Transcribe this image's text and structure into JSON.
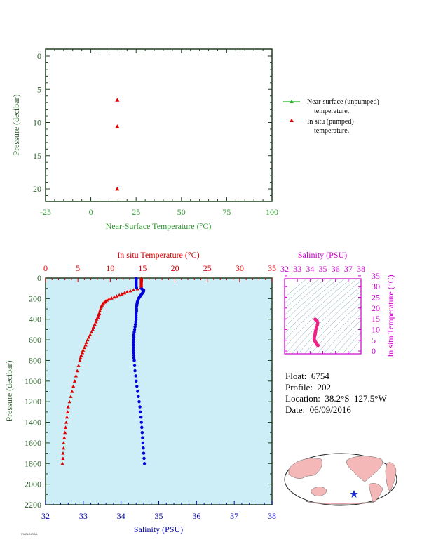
{
  "chart_data": [
    {
      "type": "scatter",
      "xlabel": "Near-Surface Temperature (°C)",
      "ylabel": "Pressure (decibar)",
      "xlim": [
        -25,
        100
      ],
      "ylim": [
        0,
        22
      ],
      "y_inverted": true,
      "xticks": [
        -25,
        0,
        25,
        50,
        75,
        100
      ],
      "yticks": [
        0,
        5,
        10,
        15,
        20
      ],
      "legend_position": "right",
      "colors": {
        "axis_label": "#2e9a2e",
        "y_label": "#2f5f2f"
      },
      "series": [
        {
          "name": "Near-surface (unpumped) temperature.",
          "color": "#2ab02a",
          "marker": "triangle-line",
          "points": []
        },
        {
          "name": "In situ (pumped) temperature.",
          "color": "#dd0000",
          "marker": "triangle",
          "points": [
            {
              "x": 14.6,
              "y": 6.6
            },
            {
              "x": 14.6,
              "y": 10.6
            },
            {
              "x": 14.6,
              "y": 20.0
            }
          ]
        }
      ]
    },
    {
      "type": "scatter",
      "top_xlabel": "In situ Temperature (°C)",
      "bottom_xlabel": "Salinity (PSU)",
      "ylabel": "Pressure (decibar)",
      "top_xlim": [
        0,
        35
      ],
      "bottom_xlim": [
        32,
        38
      ],
      "ylim": [
        0,
        2200
      ],
      "y_inverted": true,
      "top_xticks": [
        0,
        5,
        10,
        15,
        20,
        25,
        30,
        35
      ],
      "bottom_xticks": [
        32,
        33,
        34,
        35,
        36,
        37,
        38
      ],
      "yticks": [
        0,
        200,
        400,
        600,
        800,
        1000,
        1200,
        1400,
        1600,
        1800,
        2000,
        2200
      ],
      "background": "#cdeef6",
      "series": [
        {
          "name": "In situ Temperature",
          "axis": "top",
          "color": "#dd0000",
          "marker": "triangle",
          "points": [
            {
              "y": 5,
              "x": 14.8
            },
            {
              "y": 15,
              "x": 14.8
            },
            {
              "y": 25,
              "x": 14.8
            },
            {
              "y": 35,
              "x": 14.8
            },
            {
              "y": 45,
              "x": 14.8
            },
            {
              "y": 55,
              "x": 14.8
            },
            {
              "y": 65,
              "x": 14.8
            },
            {
              "y": 75,
              "x": 14.8
            },
            {
              "y": 85,
              "x": 14.8
            },
            {
              "y": 95,
              "x": 14.7
            },
            {
              "y": 105,
              "x": 14.2
            },
            {
              "y": 115,
              "x": 13.6
            },
            {
              "y": 125,
              "x": 13.1
            },
            {
              "y": 135,
              "x": 12.6
            },
            {
              "y": 145,
              "x": 12.2
            },
            {
              "y": 155,
              "x": 11.8
            },
            {
              "y": 165,
              "x": 11.4
            },
            {
              "y": 175,
              "x": 11.0
            },
            {
              "y": 185,
              "x": 10.6
            },
            {
              "y": 195,
              "x": 10.2
            },
            {
              "y": 205,
              "x": 9.8
            },
            {
              "y": 215,
              "x": 9.5
            },
            {
              "y": 225,
              "x": 9.3
            },
            {
              "y": 235,
              "x": 9.1
            },
            {
              "y": 245,
              "x": 8.9
            },
            {
              "y": 255,
              "x": 8.8
            },
            {
              "y": 265,
              "x": 8.7
            },
            {
              "y": 280,
              "x": 8.6
            },
            {
              "y": 300,
              "x": 8.5
            },
            {
              "y": 320,
              "x": 8.4
            },
            {
              "y": 340,
              "x": 8.3
            },
            {
              "y": 360,
              "x": 8.2
            },
            {
              "y": 380,
              "x": 8.1
            },
            {
              "y": 400,
              "x": 7.9
            },
            {
              "y": 425,
              "x": 7.8
            },
            {
              "y": 450,
              "x": 7.6
            },
            {
              "y": 475,
              "x": 7.4
            },
            {
              "y": 500,
              "x": 7.3
            },
            {
              "y": 525,
              "x": 7.1
            },
            {
              "y": 550,
              "x": 6.9
            },
            {
              "y": 575,
              "x": 6.7
            },
            {
              "y": 600,
              "x": 6.5
            },
            {
              "y": 625,
              "x": 6.3
            },
            {
              "y": 650,
              "x": 6.2
            },
            {
              "y": 675,
              "x": 6.0
            },
            {
              "y": 700,
              "x": 5.8
            },
            {
              "y": 725,
              "x": 5.7
            },
            {
              "y": 750,
              "x": 5.5
            },
            {
              "y": 775,
              "x": 5.4
            },
            {
              "y": 800,
              "x": 5.3
            },
            {
              "y": 850,
              "x": 5.1
            },
            {
              "y": 900,
              "x": 4.9
            },
            {
              "y": 950,
              "x": 4.7
            },
            {
              "y": 1000,
              "x": 4.5
            },
            {
              "y": 1050,
              "x": 4.3
            },
            {
              "y": 1100,
              "x": 4.1
            },
            {
              "y": 1150,
              "x": 3.9
            },
            {
              "y": 1200,
              "x": 3.7
            },
            {
              "y": 1250,
              "x": 3.5
            },
            {
              "y": 1300,
              "x": 3.4
            },
            {
              "y": 1350,
              "x": 3.3
            },
            {
              "y": 1400,
              "x": 3.2
            },
            {
              "y": 1450,
              "x": 3.1
            },
            {
              "y": 1500,
              "x": 3.0
            },
            {
              "y": 1550,
              "x": 2.9
            },
            {
              "y": 1600,
              "x": 2.8
            },
            {
              "y": 1650,
              "x": 2.8
            },
            {
              "y": 1700,
              "x": 2.7
            },
            {
              "y": 1750,
              "x": 2.7
            },
            {
              "y": 1800,
              "x": 2.6
            }
          ]
        },
        {
          "name": "Salinity",
          "axis": "bottom",
          "color": "#0000dd",
          "marker": "circle",
          "points": [
            {
              "y": 5,
              "x": 34.4
            },
            {
              "y": 15,
              "x": 34.4
            },
            {
              "y": 25,
              "x": 34.4
            },
            {
              "y": 35,
              "x": 34.4
            },
            {
              "y": 45,
              "x": 34.4
            },
            {
              "y": 55,
              "x": 34.4
            },
            {
              "y": 65,
              "x": 34.4
            },
            {
              "y": 75,
              "x": 34.4
            },
            {
              "y": 85,
              "x": 34.4
            },
            {
              "y": 95,
              "x": 34.41
            },
            {
              "y": 105,
              "x": 34.55
            },
            {
              "y": 115,
              "x": 34.6
            },
            {
              "y": 125,
              "x": 34.6
            },
            {
              "y": 135,
              "x": 34.59
            },
            {
              "y": 145,
              "x": 34.57
            },
            {
              "y": 155,
              "x": 34.55
            },
            {
              "y": 165,
              "x": 34.53
            },
            {
              "y": 175,
              "x": 34.51
            },
            {
              "y": 185,
              "x": 34.49
            },
            {
              "y": 195,
              "x": 34.47
            },
            {
              "y": 205,
              "x": 34.46
            },
            {
              "y": 215,
              "x": 34.45
            },
            {
              "y": 225,
              "x": 34.44
            },
            {
              "y": 235,
              "x": 34.43
            },
            {
              "y": 245,
              "x": 34.43
            },
            {
              "y": 255,
              "x": 34.42
            },
            {
              "y": 265,
              "x": 34.42
            },
            {
              "y": 280,
              "x": 34.41
            },
            {
              "y": 300,
              "x": 34.41
            },
            {
              "y": 320,
              "x": 34.41
            },
            {
              "y": 340,
              "x": 34.4
            },
            {
              "y": 360,
              "x": 34.4
            },
            {
              "y": 380,
              "x": 34.4
            },
            {
              "y": 400,
              "x": 34.4
            },
            {
              "y": 425,
              "x": 34.39
            },
            {
              "y": 450,
              "x": 34.38
            },
            {
              "y": 475,
              "x": 34.37
            },
            {
              "y": 500,
              "x": 34.36
            },
            {
              "y": 525,
              "x": 34.35
            },
            {
              "y": 550,
              "x": 34.34
            },
            {
              "y": 575,
              "x": 34.34
            },
            {
              "y": 600,
              "x": 34.33
            },
            {
              "y": 625,
              "x": 34.33
            },
            {
              "y": 650,
              "x": 34.33
            },
            {
              "y": 675,
              "x": 34.33
            },
            {
              "y": 700,
              "x": 34.33
            },
            {
              "y": 725,
              "x": 34.33
            },
            {
              "y": 750,
              "x": 34.34
            },
            {
              "y": 775,
              "x": 34.34
            },
            {
              "y": 800,
              "x": 34.35
            },
            {
              "y": 850,
              "x": 34.36
            },
            {
              "y": 900,
              "x": 34.37
            },
            {
              "y": 950,
              "x": 34.39
            },
            {
              "y": 1000,
              "x": 34.4
            },
            {
              "y": 1050,
              "x": 34.42
            },
            {
              "y": 1100,
              "x": 34.44
            },
            {
              "y": 1150,
              "x": 34.46
            },
            {
              "y": 1200,
              "x": 34.48
            },
            {
              "y": 1250,
              "x": 34.5
            },
            {
              "y": 1300,
              "x": 34.51
            },
            {
              "y": 1350,
              "x": 34.53
            },
            {
              "y": 1400,
              "x": 34.54
            },
            {
              "y": 1450,
              "x": 34.55
            },
            {
              "y": 1500,
              "x": 34.56
            },
            {
              "y": 1550,
              "x": 34.57
            },
            {
              "y": 1600,
              "x": 34.58
            },
            {
              "y": 1650,
              "x": 34.59
            },
            {
              "y": 1700,
              "x": 34.6
            },
            {
              "y": 1750,
              "x": 34.61
            },
            {
              "y": 1800,
              "x": 34.62
            }
          ]
        }
      ]
    },
    {
      "type": "scatter",
      "top_xlabel": "Salinity (PSU)",
      "ylabel_right": "In situ Temperature (°C)",
      "xlim": [
        32,
        38
      ],
      "ylim": [
        -2,
        35
      ],
      "xticks": [
        32,
        33,
        34,
        35,
        36,
        37,
        38
      ],
      "yticks": [
        0,
        5,
        10,
        15,
        20,
        25,
        30,
        35
      ],
      "colors": {
        "axis": "#cc00cc",
        "points": "#ee2288",
        "density_lines": "#7aa0b8"
      },
      "series": [
        {
          "name": "T-S",
          "color": "#ee2288",
          "points": [
            {
              "x": 34.4,
              "y": 14.8
            },
            {
              "x": 34.45,
              "y": 14.5
            },
            {
              "x": 34.55,
              "y": 14.0
            },
            {
              "x": 34.6,
              "y": 13.2
            },
            {
              "x": 34.57,
              "y": 12.2
            },
            {
              "x": 34.52,
              "y": 11.2
            },
            {
              "x": 34.47,
              "y": 10.2
            },
            {
              "x": 34.44,
              "y": 9.4
            },
            {
              "x": 34.42,
              "y": 8.8
            },
            {
              "x": 34.41,
              "y": 8.4
            },
            {
              "x": 34.4,
              "y": 7.9
            },
            {
              "x": 34.38,
              "y": 7.4
            },
            {
              "x": 34.35,
              "y": 6.7
            },
            {
              "x": 34.33,
              "y": 6.0
            },
            {
              "x": 34.33,
              "y": 5.4
            },
            {
              "x": 34.36,
              "y": 4.9
            },
            {
              "x": 34.4,
              "y": 4.5
            },
            {
              "x": 34.46,
              "y": 3.9
            },
            {
              "x": 34.51,
              "y": 3.4
            },
            {
              "x": 34.55,
              "y": 3.0
            },
            {
              "x": 34.58,
              "y": 2.8
            },
            {
              "x": 34.62,
              "y": 2.6
            }
          ]
        }
      ]
    }
  ],
  "info": {
    "float": "Float:  6754",
    "profile": "Profile:  202",
    "location": "Location:  38.2°S  127.5°W",
    "date": "Date:  06/09/2016"
  },
  "map": {
    "land_color": "#f5b8b8",
    "ocean_color": "#ffffff",
    "star_color": "#1a2acc"
  },
  "footer_id": "PMEL/NOAA"
}
